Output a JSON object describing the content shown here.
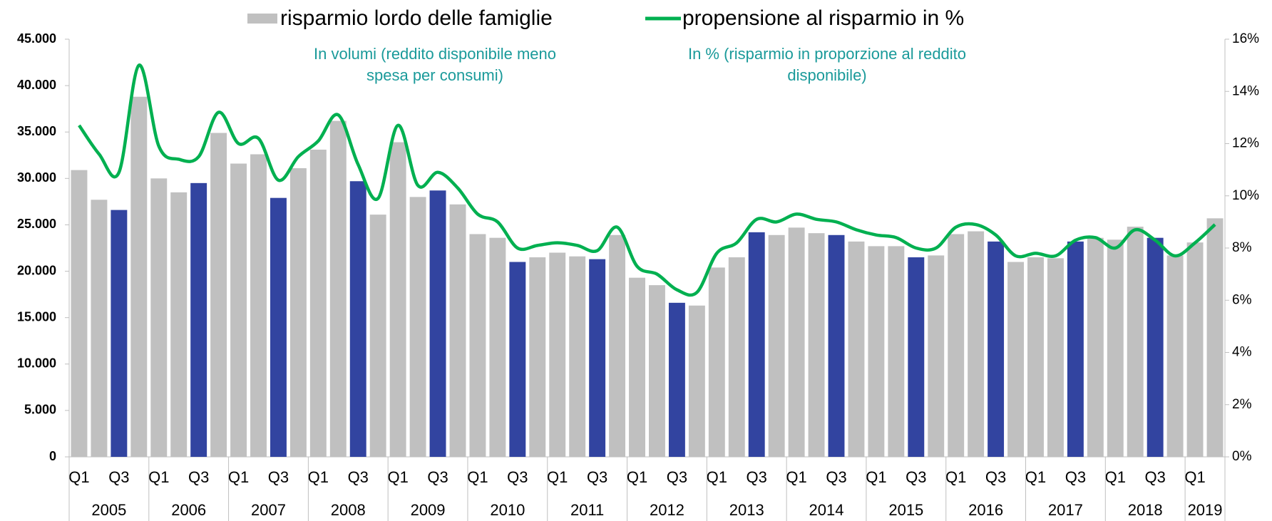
{
  "chart_data": {
    "type": "bar_line",
    "legend": {
      "position": "top"
    },
    "annotations": [
      {
        "lines": [
          "In volumi (reddito disponibile meno",
          "spesa per consumi)"
        ]
      },
      {
        "lines": [
          "In % (risparmio in proporzione al reddito",
          "disponibile)"
        ]
      }
    ],
    "categories": [
      "Q1",
      null,
      "Q3",
      null,
      "Q1",
      null,
      "Q3",
      null,
      "Q1",
      null,
      "Q3",
      null,
      "Q1",
      null,
      "Q3",
      null,
      "Q1",
      null,
      "Q3",
      null,
      "Q1",
      null,
      "Q3",
      null,
      "Q1",
      null,
      "Q3",
      null,
      "Q1",
      null,
      "Q3",
      null,
      "Q1",
      null,
      "Q3",
      null,
      "Q1",
      null,
      "Q3",
      null,
      "Q1",
      null,
      "Q3",
      null,
      "Q1",
      null,
      "Q3",
      null,
      "Q1",
      null,
      "Q3",
      null,
      "Q1",
      null,
      "Q3",
      null,
      "Q1",
      null
    ],
    "years": [
      "2005",
      "2006",
      "2007",
      "2008",
      "2009",
      "2010",
      "2011",
      "2012",
      "2013",
      "2014",
      "2015",
      "2016",
      "2017",
      "2018",
      "2019"
    ],
    "quarters_per_year": 4,
    "series": [
      {
        "name": "risparmio lordo delle famiglie",
        "type": "bar",
        "color": "#c0c0c0",
        "highlight_color": "#3244a0",
        "values": [
          30900,
          27700,
          26600,
          38800,
          30000,
          28500,
          29500,
          34900,
          31600,
          32600,
          27900,
          31100,
          33100,
          36200,
          29700,
          26100,
          33900,
          28000,
          28700,
          27200,
          24000,
          23600,
          21000,
          21500,
          22000,
          21600,
          21300,
          23900,
          19300,
          18500,
          16600,
          16300,
          20400,
          21500,
          24200,
          23900,
          24700,
          24100,
          23900,
          23200,
          22700,
          22700,
          21500,
          21700,
          24000,
          24300,
          23200,
          21000,
          21500,
          21400,
          23200,
          23600,
          23400,
          24800,
          23600,
          21700,
          23100,
          25700
        ],
        "highlight": [
          false,
          false,
          true,
          false,
          false,
          false,
          true,
          false,
          false,
          false,
          true,
          false,
          false,
          false,
          true,
          false,
          false,
          false,
          true,
          false,
          false,
          false,
          true,
          false,
          false,
          false,
          true,
          false,
          false,
          false,
          true,
          false,
          false,
          false,
          true,
          false,
          false,
          false,
          true,
          false,
          false,
          false,
          true,
          false,
          false,
          false,
          true,
          false,
          false,
          false,
          true,
          false,
          false,
          false,
          true,
          false,
          false,
          false
        ]
      },
      {
        "name": "propensione al risparmio in %",
        "type": "line",
        "color": "#00b050",
        "axis": "y2",
        "values": [
          12.7,
          11.6,
          10.9,
          15.0,
          11.9,
          11.4,
          11.5,
          13.2,
          12.0,
          12.2,
          10.6,
          11.5,
          12.1,
          13.1,
          11.2,
          9.9,
          12.7,
          10.4,
          10.9,
          10.3,
          9.3,
          9.0,
          8.0,
          8.1,
          8.2,
          8.1,
          7.9,
          8.8,
          7.3,
          7.0,
          6.4,
          6.3,
          7.8,
          8.2,
          9.1,
          9.0,
          9.3,
          9.1,
          9.0,
          8.7,
          8.5,
          8.4,
          8.0,
          8.0,
          8.8,
          8.9,
          8.5,
          7.7,
          7.8,
          7.7,
          8.3,
          8.4,
          8.0,
          8.7,
          8.3,
          7.7,
          8.2,
          8.9
        ]
      }
    ],
    "ylim": [
      0,
      45000
    ],
    "yticks": [
      0,
      {
        "value": 5000,
        "label": "5.000"
      },
      {
        "value": 10000,
        "label": "10.000"
      },
      {
        "value": 15000,
        "label": "15.000"
      },
      {
        "value": 20000,
        "label": "20.000"
      },
      {
        "value": 25000,
        "label": "25.000"
      },
      {
        "value": 30000,
        "label": "30.000"
      },
      {
        "value": 35000,
        "label": "35.000"
      },
      {
        "value": 40000,
        "label": "40.000"
      },
      {
        "value": 45000,
        "label": "45.000"
      }
    ],
    "y2lim": [
      0,
      16
    ],
    "y2ticks": [
      {
        "value": 0,
        "label": "0%"
      },
      {
        "value": 2,
        "label": "2%"
      },
      {
        "value": 4,
        "label": "4%"
      },
      {
        "value": 6,
        "label": "6%"
      },
      {
        "value": 8,
        "label": "8%"
      },
      {
        "value": 10,
        "label": "10%"
      },
      {
        "value": 12,
        "label": "12%"
      },
      {
        "value": 14,
        "label": "14%"
      },
      {
        "value": 16,
        "label": "16%"
      }
    ],
    "grid": false
  }
}
